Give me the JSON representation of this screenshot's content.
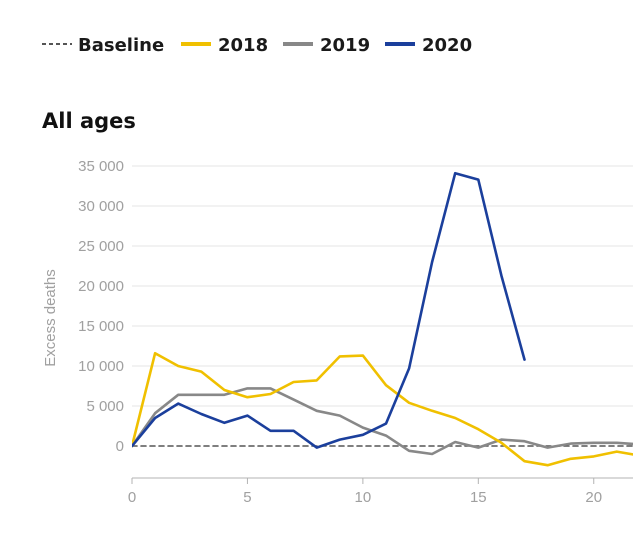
{
  "chart_data": {
    "type": "line",
    "title": "All ages",
    "xlabel": "",
    "ylabel": "Excess deaths",
    "xlim": [
      0,
      21.7
    ],
    "ylim": [
      -4000,
      35000
    ],
    "x_ticks": [
      0,
      5,
      10,
      15,
      20
    ],
    "x_tick_labels": [
      "0",
      "5",
      "10",
      "15",
      "20"
    ],
    "y_ticks": [
      0,
      5000,
      10000,
      15000,
      20000,
      25000,
      30000,
      35000
    ],
    "y_tick_labels": [
      "0",
      "5 000",
      "10 000",
      "15 000",
      "20 000",
      "25 000",
      "30 000",
      "35 000"
    ],
    "grid": "horizontal",
    "legend": "top",
    "series": [
      {
        "name": "Baseline",
        "color": "#555555",
        "dash": true,
        "x": [
          0,
          22
        ],
        "y": [
          0,
          0
        ]
      },
      {
        "name": "2018",
        "color": "#f0c000",
        "x": [
          0,
          1,
          2,
          3,
          4,
          5,
          6,
          7,
          8,
          9,
          10,
          11,
          12,
          13,
          14,
          15,
          16,
          17,
          18,
          19,
          20,
          21,
          22
        ],
        "y": [
          0,
          11600,
          10000,
          9300,
          7000,
          6100,
          6500,
          8000,
          8200,
          11200,
          11300,
          7600,
          5400,
          4400,
          3500,
          2100,
          400,
          -1900,
          -2400,
          -1600,
          -1300,
          -700,
          -1200
        ]
      },
      {
        "name": "2019",
        "color": "#888888",
        "x": [
          0,
          1,
          2,
          3,
          4,
          5,
          6,
          7,
          8,
          9,
          10,
          11,
          12,
          13,
          14,
          15,
          16,
          17,
          18,
          19,
          20,
          21,
          22
        ],
        "y": [
          0,
          4100,
          6400,
          6400,
          6400,
          7200,
          7200,
          5800,
          4400,
          3800,
          2300,
          1300,
          -600,
          -1000,
          500,
          -200,
          800,
          600,
          -200,
          300,
          400,
          400,
          200
        ]
      },
      {
        "name": "2020",
        "color": "#1b3f9c",
        "x": [
          0,
          1,
          2,
          3,
          4,
          5,
          6,
          7,
          8,
          9,
          10,
          11,
          12,
          13,
          14,
          15,
          16,
          17
        ],
        "y": [
          0,
          3500,
          5300,
          4000,
          2900,
          3800,
          1900,
          1900,
          -200,
          800,
          1400,
          2800,
          9700,
          23000,
          34100,
          33300,
          21300,
          10800
        ]
      }
    ]
  }
}
